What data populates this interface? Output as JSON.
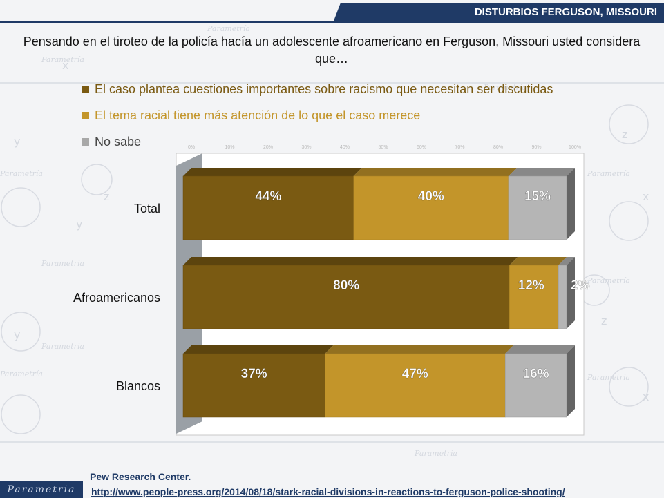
{
  "header": {
    "title": "DISTURBIOS FERGUSON, MISSOURI"
  },
  "question": "Pensando en el tiroteo de la policía hacía un adolescente afroamericano en Ferguson, Missouri usted considera que…",
  "colors": {
    "dark": "#7a5a12",
    "gold": "#c3952a",
    "gray": "#b5b5b5",
    "navy": "#1f3a66"
  },
  "legend": [
    {
      "label": "El caso plantea cuestiones importantes sobre racismo que necesitan ser discutidas",
      "color": "#7a5a12",
      "text_color": "#7a5a12"
    },
    {
      "label": "El tema racial tiene más atención de lo que el caso merece",
      "color": "#c3952a",
      "text_color": "#c3952a"
    },
    {
      "label": "No sabe",
      "color": "#a8a8a8",
      "text_color": "#444444"
    }
  ],
  "chart_data": {
    "type": "bar",
    "orientation": "horizontal",
    "stacked": true,
    "categories": [
      "Total",
      "Afroamericanos",
      "Blancos"
    ],
    "series": [
      {
        "name": "El caso plantea cuestiones importantes sobre racismo que necesitan ser discutidas",
        "values": [
          44,
          80,
          37
        ],
        "color": "#7a5a12",
        "labels": [
          "44%",
          "80%",
          "37%"
        ]
      },
      {
        "name": "El tema racial tiene más atención de lo que el caso merece",
        "values": [
          40,
          12,
          47
        ],
        "color": "#c3952a",
        "labels": [
          "40%",
          "12%",
          "47%"
        ]
      },
      {
        "name": "No sabe",
        "values": [
          15,
          2,
          16
        ],
        "color": "#b5b5b5",
        "labels": [
          "15%",
          "2%",
          "16%"
        ]
      }
    ],
    "x_ticks": [
      "0%",
      "10%",
      "20%",
      "30%",
      "40%",
      "50%",
      "60%",
      "70%",
      "80%",
      "90%",
      "100%"
    ],
    "xlim": [
      0,
      100
    ],
    "grid": false,
    "legend_position": "top"
  },
  "source": {
    "name": "Pew Research Center.",
    "url": "http://www.people-press.org/2014/08/18/stark-racial-divisions-in-reactions-to-ferguson-police-shooting/"
  },
  "logo": "Parametria"
}
